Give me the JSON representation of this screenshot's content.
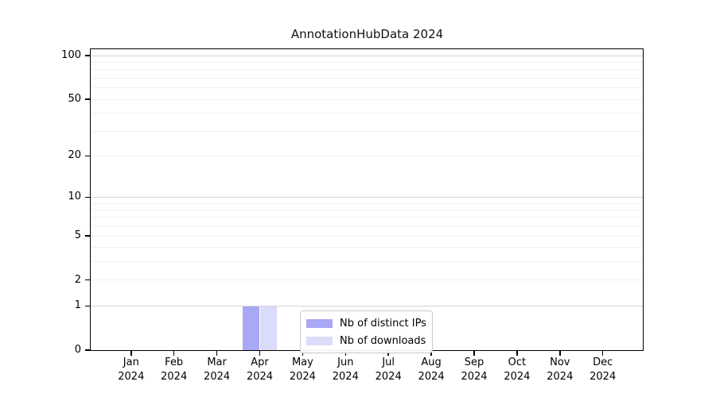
{
  "title": "AnnotationHubData 2024",
  "chart_data": {
    "type": "bar",
    "title": "AnnotationHubData 2024",
    "xlabel": "",
    "ylabel": "",
    "year_label": "2024",
    "categories": [
      "Jan",
      "Feb",
      "Mar",
      "Apr",
      "May",
      "Jun",
      "Jul",
      "Aug",
      "Sep",
      "Oct",
      "Nov",
      "Dec"
    ],
    "series": [
      {
        "name": "Nb of distinct IPs",
        "color": "#a8a8f5",
        "values": [
          0,
          0,
          0,
          1,
          0,
          0,
          0,
          0,
          0,
          0,
          0,
          0
        ]
      },
      {
        "name": "Nb of downloads",
        "color": "#dbdbfa",
        "values": [
          0,
          0,
          0,
          1,
          0,
          0,
          0,
          0,
          0,
          0,
          0,
          0
        ]
      }
    ],
    "y_scale": "log10(1+v)",
    "ylim": [
      0,
      113
    ],
    "y_ticks": [
      100,
      50,
      20,
      10,
      5,
      2,
      1,
      0
    ],
    "y_major_gridlines": [
      1,
      10,
      100
    ],
    "y_minor_gridlines": [
      2,
      3,
      4,
      5,
      6,
      7,
      8,
      9,
      20,
      30,
      40,
      50,
      60,
      70,
      80,
      90
    ],
    "grid": "horizontal only",
    "legend_position": "lower center inside"
  },
  "legend": {
    "items": [
      {
        "label": "Nb of distinct IPs",
        "color": "#a8a8f5"
      },
      {
        "label": "Nb of downloads",
        "color": "#dbdbfa"
      }
    ]
  }
}
